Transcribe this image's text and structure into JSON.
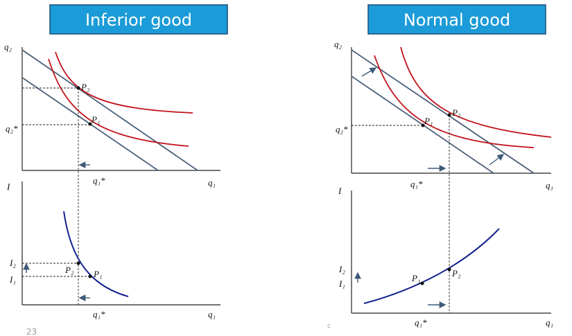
{
  "slide_number": "23",
  "footer_mark": "c",
  "panels": [
    {
      "title": "Inferior good",
      "top": {
        "y_axis": "q₂",
        "x_axis": "q₁",
        "y_star": "q₂*",
        "x_star": "q₁*",
        "points": [
          "P₂",
          "P₁"
        ]
      },
      "bottom": {
        "y_axis": "I",
        "x_axis": "q₁",
        "x_star": "q₁*",
        "levels": [
          "I₂",
          "I₁"
        ],
        "points": [
          "P₂",
          "P₁"
        ]
      }
    },
    {
      "title": "Normal good",
      "top": {
        "y_axis": "q₂",
        "x_axis": "q₁",
        "y_star": "q₂*",
        "x_star": "q₁*",
        "points": [
          "P₁",
          "P₂"
        ]
      },
      "bottom": {
        "y_axis": "I",
        "x_axis": "q₁",
        "x_star": "q₁*",
        "levels": [
          "I₂",
          "I₁"
        ],
        "points": [
          "P₁",
          "P₂"
        ]
      }
    }
  ]
}
